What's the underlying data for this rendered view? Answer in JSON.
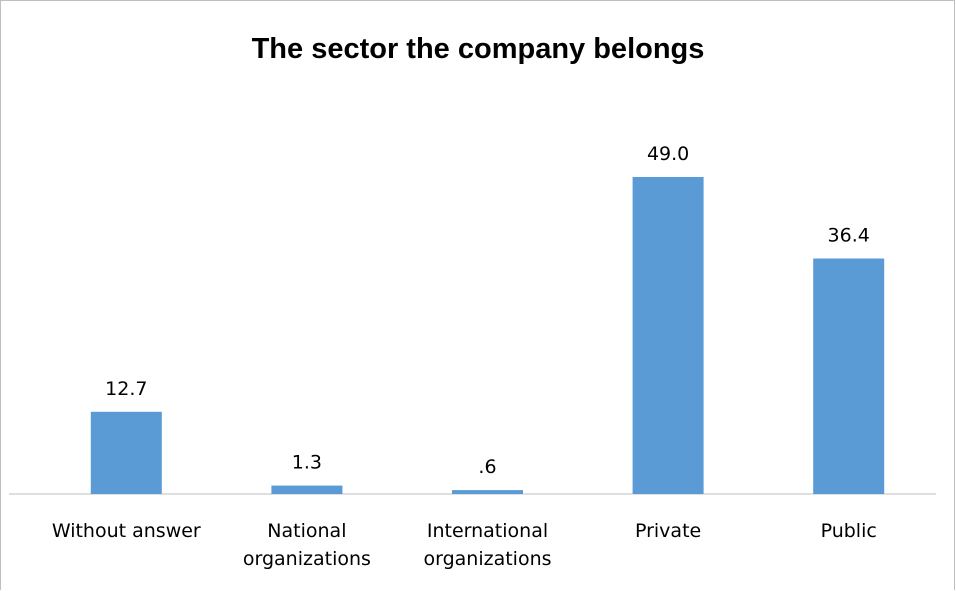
{
  "chart_data": {
    "type": "bar",
    "title": "The sector the company belongs",
    "categories": [
      [
        "Without answer"
      ],
      [
        "National",
        "organizations"
      ],
      [
        "International",
        "organizations"
      ],
      [
        "Private"
      ],
      [
        "Public"
      ]
    ],
    "values": [
      12.7,
      1.3,
      0.6,
      49.0,
      36.4
    ],
    "value_labels": [
      "12.7",
      "1.3",
      ".6",
      "49.0",
      "36.4"
    ],
    "xlabel": "",
    "ylabel": "",
    "ylim": [
      0,
      55
    ],
    "grid": false,
    "legend": "none",
    "bar_color": "#5b9bd5",
    "axis_color": "#bfbfbf"
  }
}
